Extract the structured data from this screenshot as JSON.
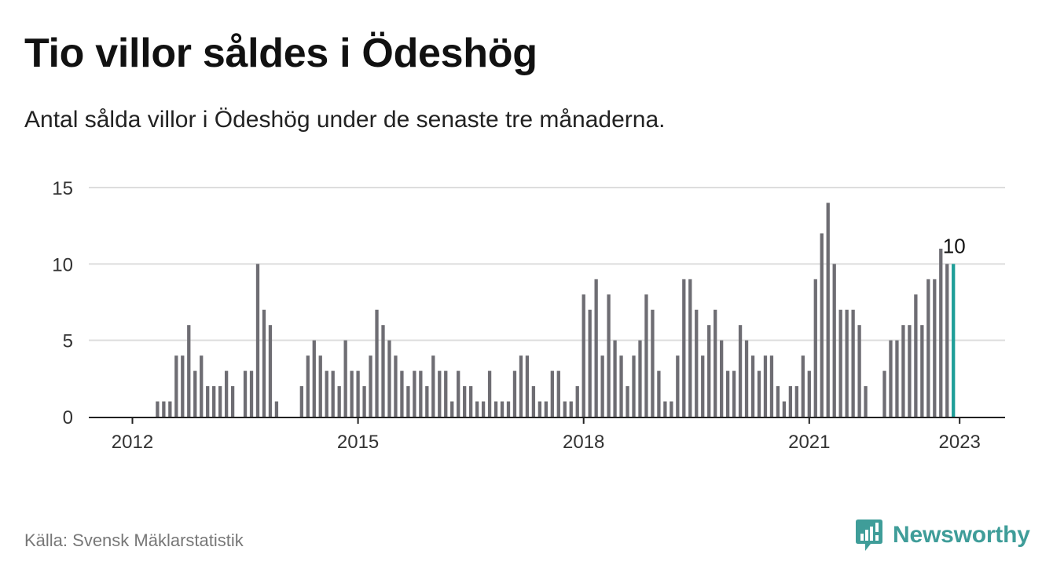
{
  "title": "Tio villor såldes i Ödeshög",
  "subtitle": "Antal sålda villor i Ödeshög under de senaste tre månaderna.",
  "source": "Källa: Svensk Mäklarstatistik",
  "brand": {
    "name": "Newsworthy",
    "icon": "newsworthy-logo-icon",
    "color": "#3f9d99"
  },
  "colors": {
    "bar": "#6e6d73",
    "highlight": "#1f9e98",
    "grid": "#dddddd",
    "axis": "#222222"
  },
  "chart_data": {
    "type": "bar",
    "title": "Tio villor såldes i Ödeshög",
    "subtitle": "Antal sålda villor i Ödeshög under de senaste tre månaderna.",
    "xlabel": "",
    "ylabel": "",
    "ylim": [
      0,
      15
    ],
    "yticks": [
      "0",
      "5",
      "10",
      "15"
    ],
    "xticks": [
      {
        "label": "2012",
        "month_index": 0
      },
      {
        "label": "2015",
        "month_index": 36
      },
      {
        "label": "2018",
        "month_index": 72
      },
      {
        "label": "2021",
        "month_index": 108
      },
      {
        "label": "2023",
        "month_index": 132
      }
    ],
    "start": "2012-01",
    "frequency": "monthly",
    "values": [
      0,
      0,
      0,
      0,
      1,
      1,
      1,
      4,
      4,
      6,
      3,
      4,
      2,
      2,
      2,
      3,
      2,
      0,
      3,
      3,
      10,
      7,
      6,
      1,
      0,
      0,
      0,
      2,
      4,
      5,
      4,
      3,
      3,
      2,
      5,
      3,
      3,
      2,
      4,
      7,
      6,
      5,
      4,
      3,
      2,
      3,
      3,
      2,
      4,
      3,
      3,
      1,
      3,
      2,
      2,
      1,
      1,
      3,
      1,
      1,
      1,
      3,
      4,
      4,
      2,
      1,
      1,
      3,
      3,
      1,
      1,
      2,
      8,
      7,
      9,
      4,
      8,
      5,
      4,
      2,
      4,
      5,
      8,
      7,
      3,
      1,
      1,
      4,
      9,
      9,
      7,
      4,
      6,
      7,
      5,
      3,
      3,
      6,
      5,
      4,
      3,
      4,
      4,
      2,
      1,
      2,
      2,
      4,
      3,
      9,
      12,
      14,
      10,
      7,
      7,
      7,
      6,
      2,
      0,
      0,
      3,
      5,
      5,
      6,
      6,
      8,
      6,
      9,
      9,
      11,
      10,
      10
    ],
    "highlight": {
      "month_index": 131,
      "label": "10"
    },
    "grid": true,
    "legend": "none"
  }
}
